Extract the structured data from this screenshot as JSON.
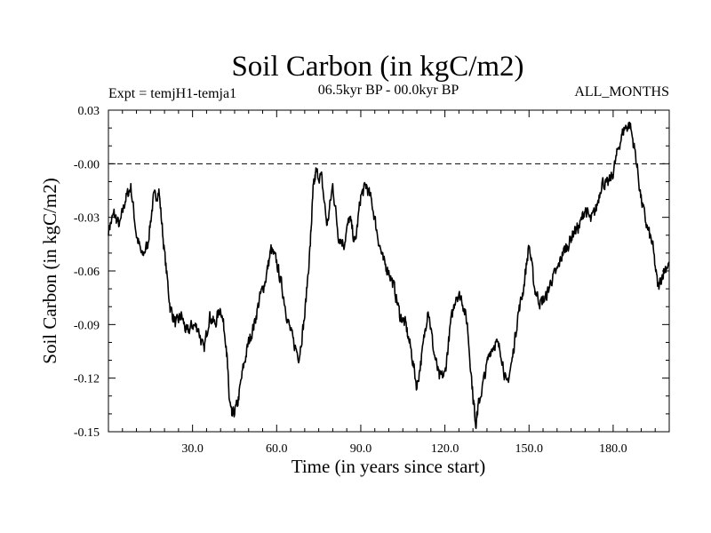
{
  "chart_data": {
    "type": "line",
    "title": "Soil Carbon (in kgC/m2)",
    "experiment_label": "Expt = temjH1-temja1",
    "period_label": "06.5kyr BP - 00.0kyr BP",
    "months_label": "ALL_MONTHS",
    "xlabel": "Time (in years since start)",
    "ylabel": "Soil Carbon (in kgC/m2)",
    "xlim": [
      0,
      200
    ],
    "ylim": [
      -0.15,
      0.03
    ],
    "x_ticks": [
      30,
      60,
      90,
      120,
      150,
      180
    ],
    "x_tick_labels": [
      "30.0",
      "60.0",
      "90.0",
      "120.0",
      "150.0",
      "180.0"
    ],
    "y_ticks": [
      0.03,
      0.0,
      -0.03,
      -0.06,
      -0.09,
      -0.12,
      -0.15
    ],
    "y_tick_labels": [
      "0.03",
      "-0.00",
      "-0.03",
      "-0.06",
      "-0.09",
      "-0.12",
      "-0.15"
    ],
    "reference_line": 0.0,
    "series": [
      {
        "name": "Soil Carbon",
        "x": [
          0,
          2,
          4,
          6,
          8,
          10,
          12,
          14,
          16,
          18,
          20,
          22,
          24,
          26,
          28,
          30,
          32,
          34,
          36,
          38,
          40,
          42,
          43,
          44,
          46,
          48,
          50,
          52,
          54,
          56,
          58,
          60,
          62,
          64,
          66,
          68,
          70,
          72,
          73,
          74,
          76,
          78,
          80,
          82,
          84,
          86,
          88,
          90,
          92,
          94,
          96,
          98,
          100,
          102,
          104,
          106,
          108,
          110,
          112,
          114,
          116,
          118,
          120,
          122,
          124,
          126,
          128,
          130,
          131,
          132,
          134,
          136,
          138,
          140,
          142,
          144,
          146,
          148,
          150,
          152,
          154,
          156,
          158,
          160,
          162,
          164,
          166,
          168,
          170,
          172,
          174,
          176,
          178,
          180,
          182,
          184,
          186,
          188,
          190,
          192,
          194,
          196,
          198,
          200
        ],
        "values": [
          -0.037,
          -0.028,
          -0.035,
          -0.02,
          -0.013,
          -0.04,
          -0.052,
          -0.045,
          -0.02,
          -0.015,
          -0.05,
          -0.08,
          -0.09,
          -0.085,
          -0.095,
          -0.09,
          -0.092,
          -0.105,
          -0.085,
          -0.09,
          -0.08,
          -0.1,
          -0.13,
          -0.142,
          -0.135,
          -0.115,
          -0.1,
          -0.09,
          -0.075,
          -0.065,
          -0.048,
          -0.055,
          -0.07,
          -0.088,
          -0.1,
          -0.108,
          -0.085,
          -0.045,
          -0.015,
          -0.005,
          -0.008,
          -0.035,
          -0.012,
          -0.04,
          -0.045,
          -0.03,
          -0.045,
          -0.018,
          -0.012,
          -0.022,
          -0.04,
          -0.055,
          -0.06,
          -0.07,
          -0.085,
          -0.09,
          -0.105,
          -0.125,
          -0.105,
          -0.08,
          -0.105,
          -0.12,
          -0.118,
          -0.09,
          -0.073,
          -0.075,
          -0.09,
          -0.13,
          -0.145,
          -0.135,
          -0.12,
          -0.105,
          -0.1,
          -0.105,
          -0.125,
          -0.11,
          -0.085,
          -0.07,
          -0.045,
          -0.07,
          -0.078,
          -0.075,
          -0.065,
          -0.06,
          -0.05,
          -0.045,
          -0.038,
          -0.035,
          -0.025,
          -0.032,
          -0.025,
          -0.01,
          -0.012,
          -0.005,
          0.01,
          0.02,
          0.022,
          0.005,
          -0.02,
          -0.035,
          -0.045,
          -0.07,
          -0.06,
          -0.055
        ]
      }
    ]
  },
  "colors": {
    "background": "#ffffff",
    "line": "#000000",
    "axes": "#000000"
  }
}
